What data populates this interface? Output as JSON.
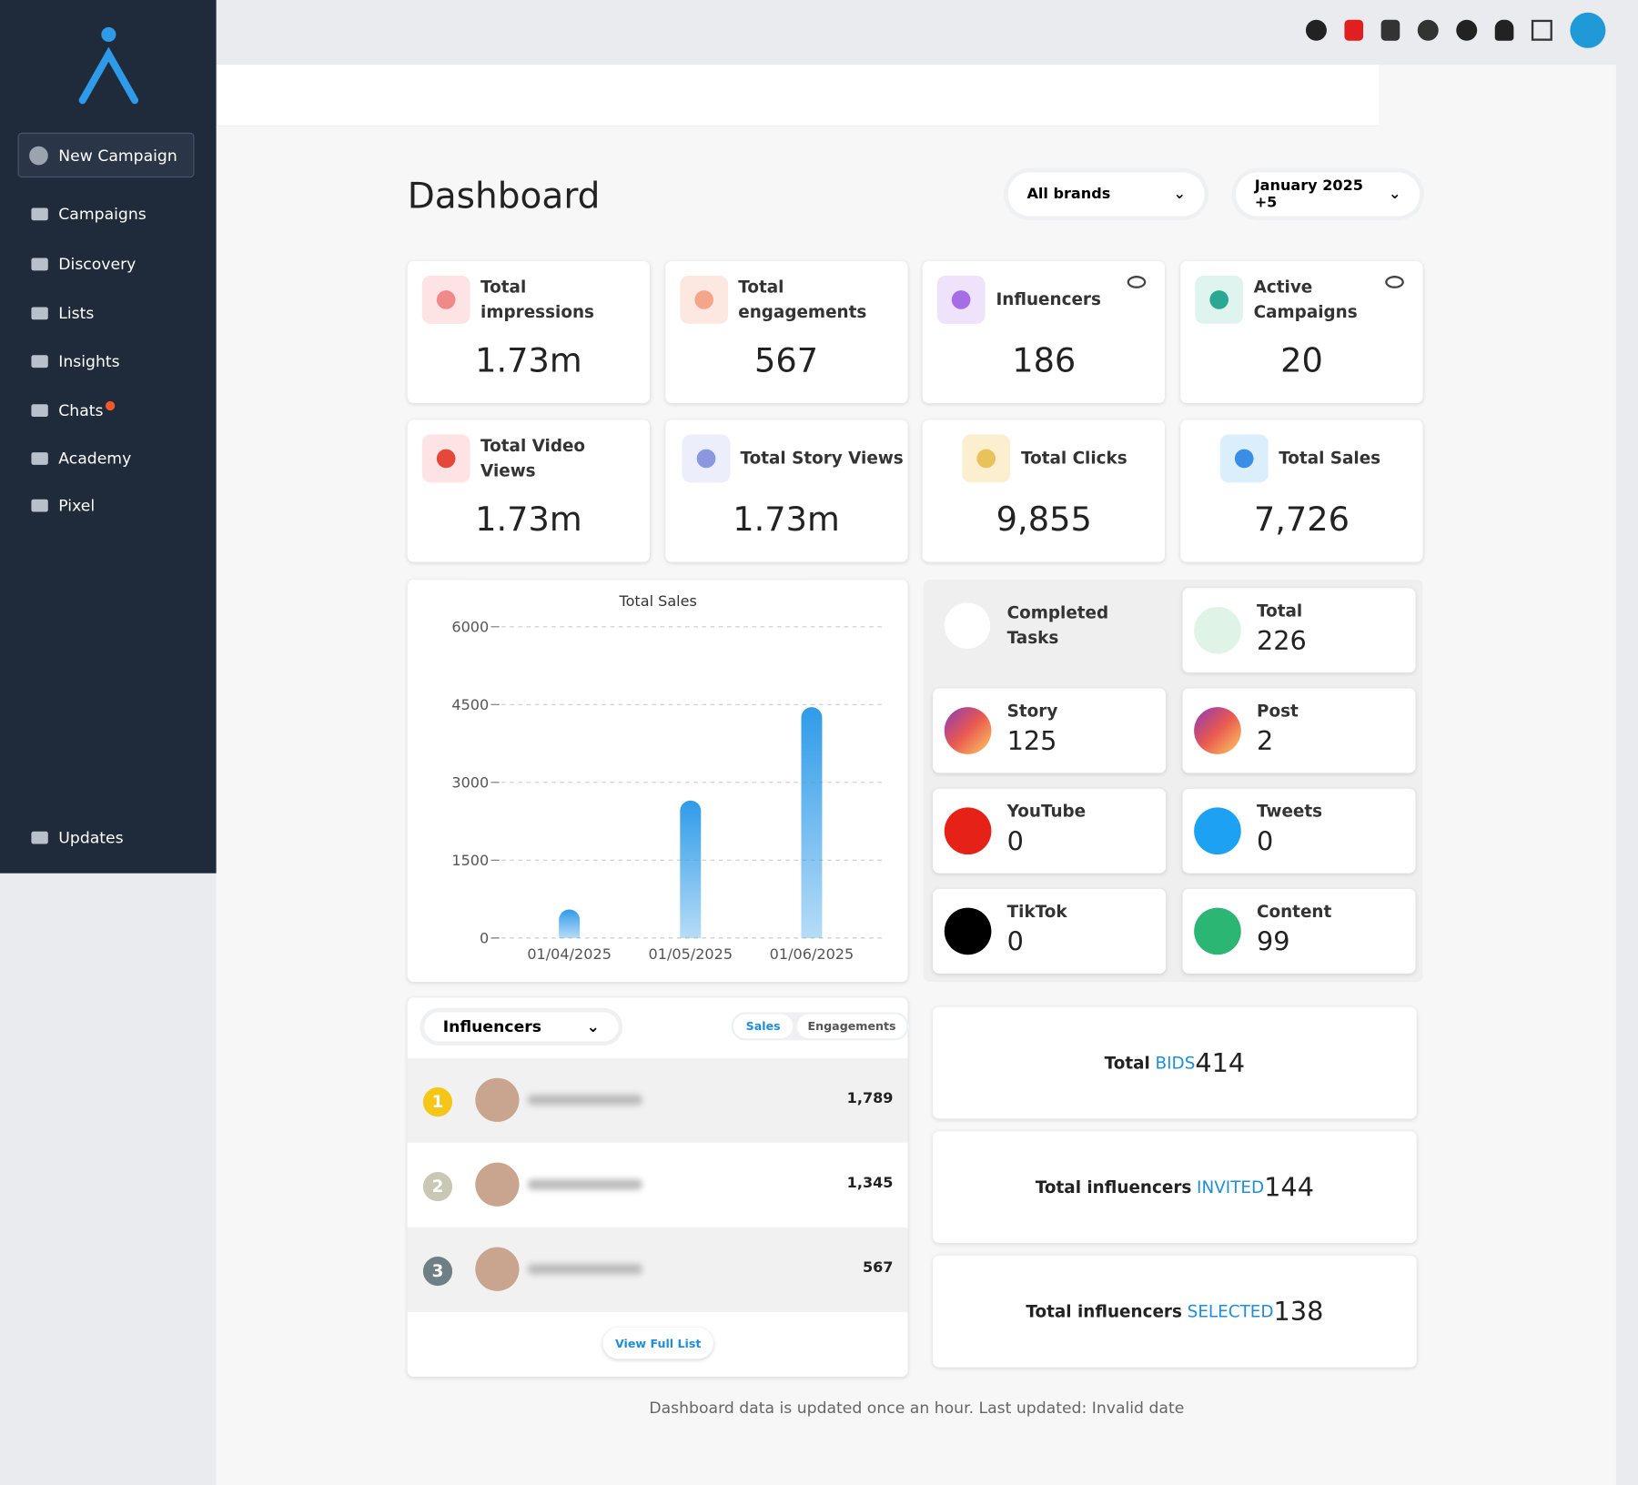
{
  "sidebar": {
    "new_campaign": "New Campaign",
    "menu": [
      "Campaigns",
      "Discovery",
      "Lists",
      "Insights",
      "Chats",
      "Academy",
      "Pixel"
    ],
    "updates": "Updates"
  },
  "header": {
    "title": "Dashboard",
    "brand_filter": "All brands",
    "date_filter": "January 2025 +5"
  },
  "stats": [
    {
      "label": "Total impressions",
      "value": "1.73m"
    },
    {
      "label": "Total engagements",
      "value": 567
    },
    {
      "label": "Influencers",
      "value": 186
    },
    {
      "label": "Active Campaigns",
      "value": 20
    },
    {
      "label": "Total Video Views",
      "value": "1.73m"
    },
    {
      "label": "Total Story Views",
      "value": "1.73m"
    },
    {
      "label": "Total Clicks",
      "value": "9,855"
    },
    {
      "label": "Total Sales",
      "value": "7,726"
    }
  ],
  "chart_data": {
    "type": "bar",
    "title": "Total Sales",
    "categories": [
      "01/04/2025",
      "01/05/2025",
      "01/06/2025"
    ],
    "values": [
      550,
      2650,
      4450
    ],
    "color": "#2f9be8",
    "ylim": [
      0,
      6000
    ],
    "yticks": [
      0,
      1500,
      3000,
      4500,
      6000
    ],
    "grid": true
  },
  "tasks": {
    "title": "Completed Tasks",
    "items": [
      {
        "label": "Total",
        "value": 226
      },
      {
        "label": "Story",
        "value": 125
      },
      {
        "label": "Post",
        "value": 2
      },
      {
        "label": "YouTube",
        "value": 0
      },
      {
        "label": "Tweets",
        "value": 0
      },
      {
        "label": "TikTok",
        "value": 0
      },
      {
        "label": "Content",
        "value": 99
      }
    ]
  },
  "leaderboard": {
    "dropdown": "Influencers",
    "tabs": [
      "Sales",
      "Engagements"
    ],
    "rows": [
      {
        "rank": 1,
        "value": "1,789"
      },
      {
        "rank": 2,
        "value": "1,345"
      },
      {
        "rank": 3,
        "value": 567
      }
    ],
    "view_all": "View Full List"
  },
  "totals": [
    {
      "prefix": "Total",
      "highlight": "BIDS",
      "value": 414
    },
    {
      "prefix": "Total influencers",
      "highlight": "INVITED",
      "value": 144
    },
    {
      "prefix": "Total influencers",
      "highlight": "SELECTED",
      "value": 138
    }
  ],
  "footer": "Dashboard data is updated once an hour. Last updated: Invalid date"
}
